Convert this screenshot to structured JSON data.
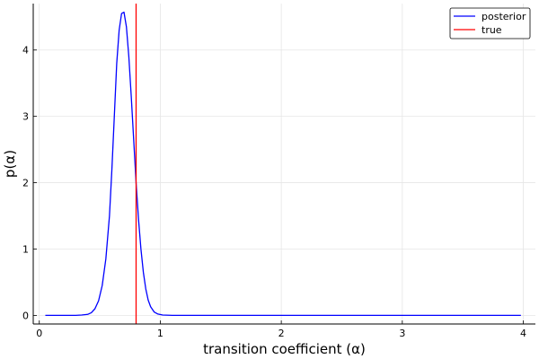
{
  "chart_data": {
    "type": "line",
    "title": "",
    "xlabel": "transition coefficient (α)",
    "ylabel": "p(α)",
    "xlim": [
      -0.05,
      4.1
    ],
    "ylim": [
      -0.13,
      4.7
    ],
    "xticks": [
      0,
      1,
      2,
      3,
      4
    ],
    "xtick_labels": [
      "0",
      "1",
      "2",
      "3",
      "4"
    ],
    "yticks": [
      0,
      1,
      2,
      3,
      4
    ],
    "ytick_labels": [
      "0",
      "1",
      "2",
      "3",
      "4"
    ],
    "grid": true,
    "legend_position": "top-right",
    "series": [
      {
        "name": "posterior",
        "color": "#0000ff",
        "x": [
          0.05,
          0.3,
          0.35,
          0.4,
          0.43,
          0.46,
          0.49,
          0.52,
          0.55,
          0.58,
          0.6,
          0.62,
          0.64,
          0.66,
          0.68,
          0.7,
          0.72,
          0.74,
          0.76,
          0.78,
          0.8,
          0.82,
          0.84,
          0.86,
          0.88,
          0.9,
          0.92,
          0.95,
          0.98,
          1.02,
          1.1,
          1.3,
          2.0,
          3.0,
          3.98
        ],
        "y": [
          0.0,
          0.0,
          0.005,
          0.015,
          0.04,
          0.1,
          0.22,
          0.45,
          0.85,
          1.5,
          2.2,
          3.0,
          3.8,
          4.3,
          4.55,
          4.57,
          4.35,
          3.9,
          3.3,
          2.65,
          2.0,
          1.45,
          1.0,
          0.65,
          0.4,
          0.23,
          0.13,
          0.05,
          0.02,
          0.005,
          0.0,
          0.0,
          0.0,
          0.0,
          0.0
        ]
      },
      {
        "name": "true",
        "color": "#ff0000",
        "vline": 0.8
      }
    ]
  }
}
